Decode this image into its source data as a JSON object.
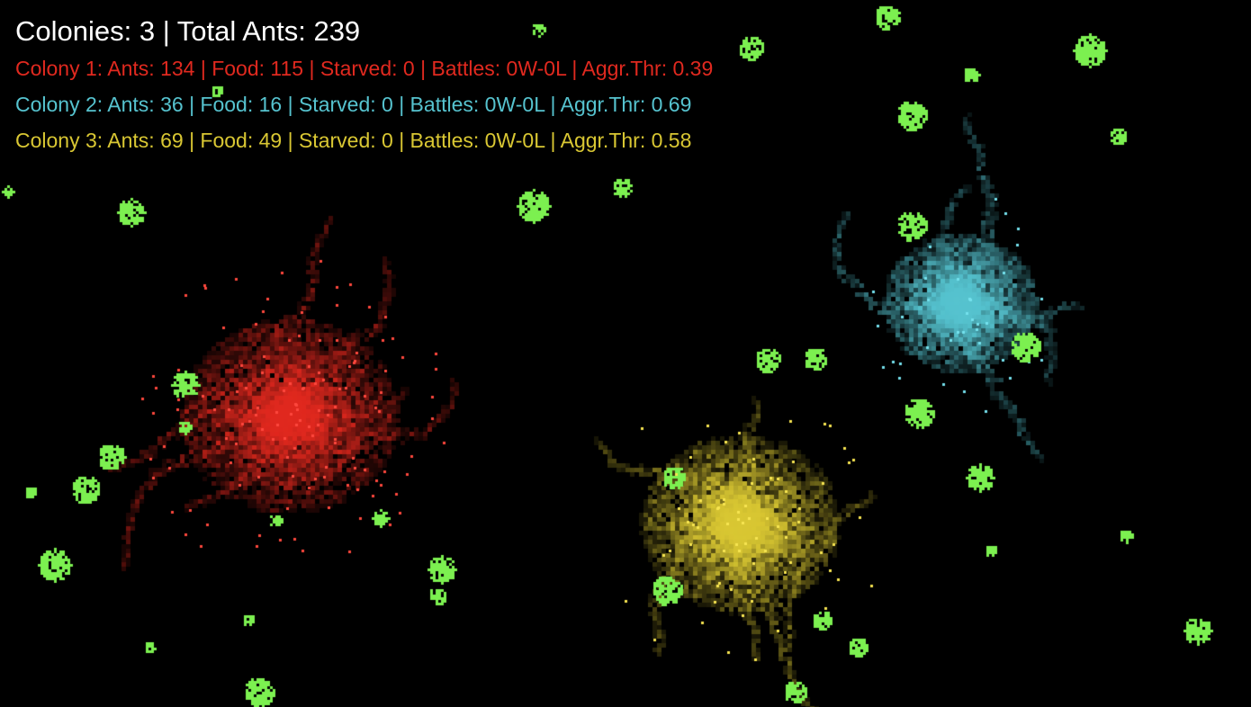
{
  "hud": {
    "title": "Colonies: 3 | Total Ants: 239",
    "title_color": "#ffffff",
    "colonies": [
      {
        "line": "Colony 1: Ants: 134 | Food: 115 | Starved: 0 | Battles: 0W-0L | Aggr.Thr: 0.39",
        "color": "#e0291f"
      },
      {
        "line": "Colony 2: Ants: 36 | Food: 16 | Starved: 0 | Battles: 0W-0L | Aggr.Thr: 0.69",
        "color": "#56c3cf"
      },
      {
        "line": "Colony 3: Ants: 69 | Food: 49 | Starved: 0 | Battles: 0W-0L | Aggr.Thr: 0.58",
        "color": "#d9c733"
      }
    ]
  },
  "colors": {
    "background": "#000000",
    "food": "#7cf050",
    "colony_1": "#e0291f",
    "colony_2": "#56c3cf",
    "colony_3": "#d9c733"
  }
}
